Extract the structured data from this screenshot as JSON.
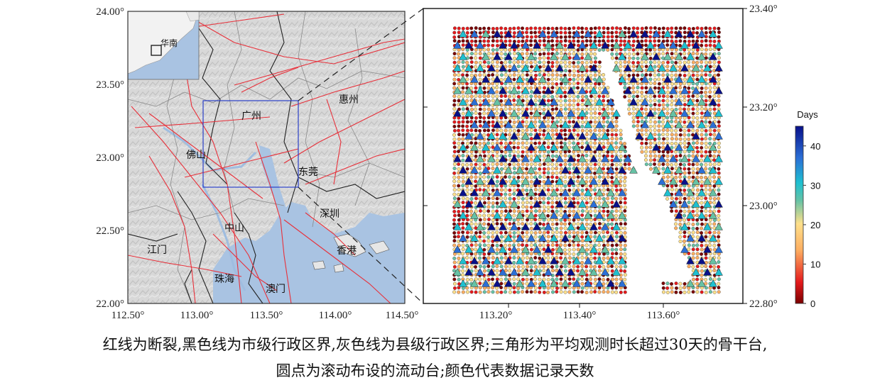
{
  "left_map": {
    "lon_ticks": [
      "112.50°",
      "113.00°",
      "113.50°",
      "114.00°",
      "114.50°"
    ],
    "lat_ticks": [
      "24.00°",
      "23.50°",
      "23.00°",
      "22.50°",
      "22.00°"
    ],
    "cities": [
      "惠州",
      "广州",
      "佛山",
      "东莞",
      "深圳",
      "中山",
      "香港",
      "江门",
      "珠海",
      "澳门"
    ],
    "inset_label": "华南",
    "colors": {
      "fault": "#e8303a",
      "study_box": "#2a3fc8",
      "water": "#a9c3e2",
      "relief": "#d6d6d6"
    }
  },
  "right_map": {
    "lon_ticks": [
      "113.20°",
      "113.40°",
      "113.60°"
    ],
    "lat_ticks": [
      "23.40°",
      "23.20°",
      "23.00°",
      "22.80°"
    ]
  },
  "colorbar": {
    "title": "Days",
    "ticks": [
      "0",
      "10",
      "20",
      "30",
      "40"
    ],
    "range": [
      0,
      45
    ],
    "colors": [
      "#7a0000",
      "#e41a1c",
      "#fdae61",
      "#fee08b",
      "#66c2a5",
      "#1ec0d0",
      "#2b6fd6",
      "#08108a"
    ]
  },
  "legend_meaning": {
    "triangle": "backbone station (avg. observation > 30 days)",
    "circle": "mobile station (rolling deployment)"
  },
  "caption": {
    "line1": "红线为断裂,黑色线为市级行政区界,灰色线为县级行政区界;三角形为平均观测时长超过30天的骨干台,",
    "line2": "圆点为滚动布设的流动台;颜色代表数据记录天数"
  }
}
